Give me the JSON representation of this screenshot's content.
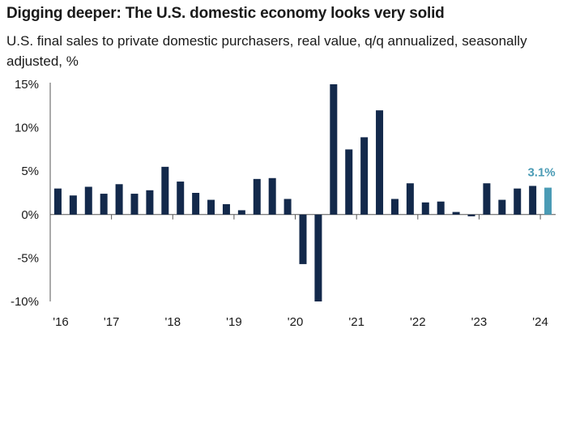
{
  "title": "Digging deeper: The U.S. domestic economy looks very solid",
  "subtitle": "U.S. final sales to private domestic purchasers, real value, q/q annualized, seasonally adjusted, %",
  "colors": {
    "bar": "#13294b",
    "highlight": "#4a9bb5",
    "axis": "#555555"
  },
  "chart_data": {
    "type": "bar",
    "title": "Digging deeper: The U.S. domestic economy looks very solid",
    "subtitle": "U.S. final sales to private domestic purchasers, real value, q/q annualized, seasonally adjusted, %",
    "xlabel": "",
    "ylabel": "",
    "ylim": [
      -10,
      15
    ],
    "yticks": [
      "15%",
      "10%",
      "5%",
      "0%",
      "-5%",
      "-10%"
    ],
    "ytick_values": [
      15,
      10,
      5,
      0,
      -5,
      -10
    ],
    "xtick_labels": [
      "'16",
      "'17",
      "'18",
      "'19",
      "'20",
      "'21",
      "'22",
      "'23",
      "'24"
    ],
    "categories": [
      "2016 Q1",
      "2016 Q2",
      "2016 Q3",
      "2016 Q4",
      "2017 Q1",
      "2017 Q2",
      "2017 Q3",
      "2017 Q4",
      "2018 Q1",
      "2018 Q2",
      "2018 Q3",
      "2018 Q4",
      "2019 Q1",
      "2019 Q2",
      "2019 Q3",
      "2019 Q4",
      "2020 Q1",
      "2020 Q2",
      "2020 Q3",
      "2020 Q4",
      "2021 Q1",
      "2021 Q2",
      "2021 Q3",
      "2021 Q4",
      "2022 Q1",
      "2022 Q2",
      "2022 Q3",
      "2022 Q4",
      "2023 Q1",
      "2023 Q2",
      "2023 Q3",
      "2023 Q4",
      "2024 Q1"
    ],
    "values": [
      3.0,
      2.2,
      3.2,
      2.4,
      3.5,
      2.4,
      2.8,
      5.5,
      3.8,
      2.5,
      1.7,
      1.2,
      0.5,
      4.1,
      4.2,
      1.8,
      -5.7,
      -10.0,
      15.0,
      7.5,
      8.9,
      12.0,
      1.8,
      3.6,
      1.4,
      1.5,
      0.3,
      -0.2,
      3.6,
      1.7,
      3.0,
      3.3,
      3.1
    ],
    "highlight_index": 32,
    "highlight_label": "3.1%",
    "grid": false,
    "legend": "none"
  }
}
